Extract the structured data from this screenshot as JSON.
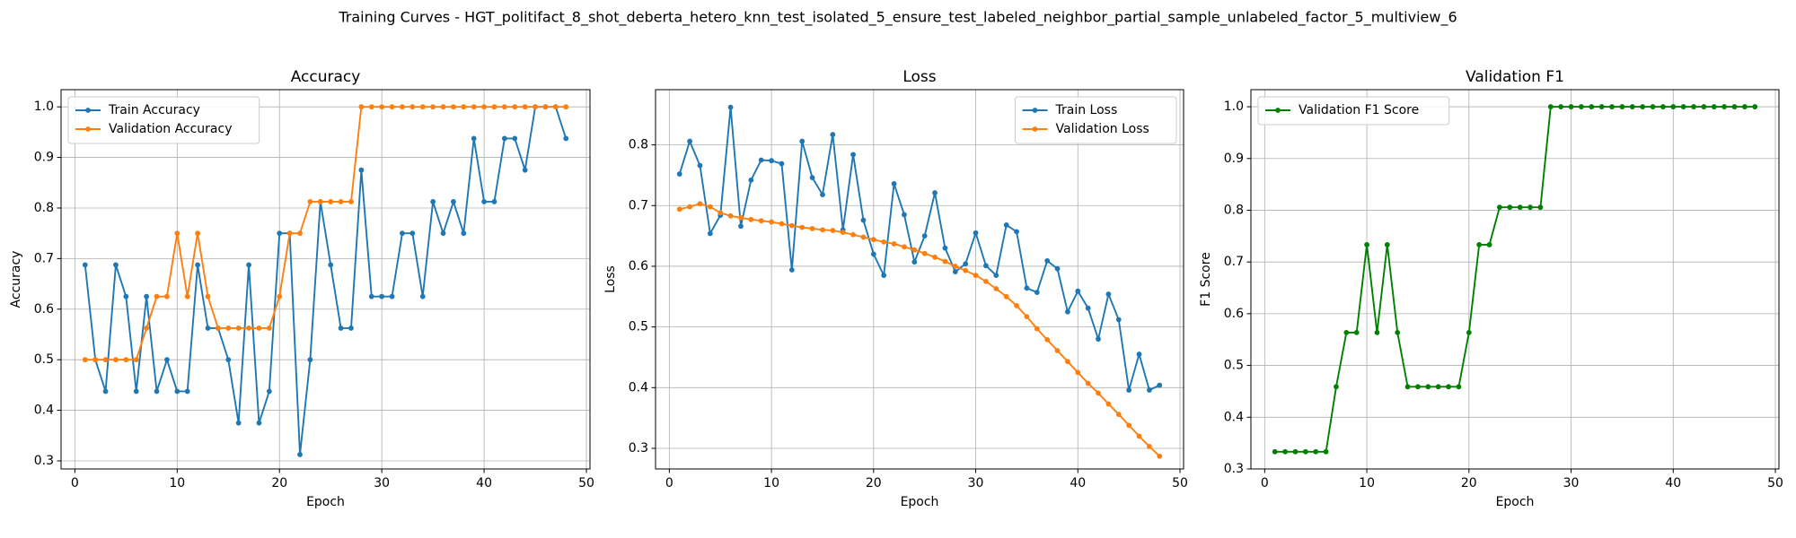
{
  "title": "Training Curves - HGT_politifact_8_shot_deberta_hetero_knn_test_isolated_5_ensure_test_labeled_neighbor_partial_sample_unlabeled_factor_5_multiview_6",
  "chart_data": [
    {
      "type": "line",
      "title": "Accuracy",
      "xlabel": "Epoch",
      "ylabel": "Accuracy",
      "x": [
        1,
        2,
        3,
        4,
        5,
        6,
        7,
        8,
        9,
        10,
        11,
        12,
        13,
        14,
        15,
        16,
        17,
        18,
        19,
        20,
        21,
        22,
        23,
        24,
        25,
        26,
        27,
        28,
        29,
        30,
        31,
        32,
        33,
        34,
        35,
        36,
        37,
        38,
        39,
        40,
        41,
        42,
        43,
        44,
        45,
        46,
        47,
        48
      ],
      "series": [
        {
          "name": "Train Accuracy",
          "color": "#1f77b4",
          "values": [
            0.6875,
            0.5,
            0.4375,
            0.6875,
            0.625,
            0.4375,
            0.625,
            0.4375,
            0.5,
            0.4375,
            0.4375,
            0.6875,
            0.5625,
            0.5625,
            0.5,
            0.375,
            0.6875,
            0.375,
            0.4375,
            0.75,
            0.75,
            0.3125,
            0.5,
            0.8125,
            0.6875,
            0.5625,
            0.5625,
            0.875,
            0.625,
            0.625,
            0.625,
            0.75,
            0.75,
            0.625,
            0.8125,
            0.75,
            0.8125,
            0.75,
            0.9375,
            0.8125,
            0.8125,
            0.9375,
            0.9375,
            0.875,
            1.0,
            1.0,
            1.0,
            0.9375
          ]
        },
        {
          "name": "Validation Accuracy",
          "color": "#ff7f0e",
          "values": [
            0.5,
            0.5,
            0.5,
            0.5,
            0.5,
            0.5,
            0.5625,
            0.625,
            0.625,
            0.75,
            0.625,
            0.75,
            0.625,
            0.5625,
            0.5625,
            0.5625,
            0.5625,
            0.5625,
            0.5625,
            0.625,
            0.75,
            0.75,
            0.8125,
            0.8125,
            0.8125,
            0.8125,
            0.8125,
            1.0,
            1.0,
            1.0,
            1.0,
            1.0,
            1.0,
            1.0,
            1.0,
            1.0,
            1.0,
            1.0,
            1.0,
            1.0,
            1.0,
            1.0,
            1.0,
            1.0,
            1.0,
            1.0,
            1.0,
            1.0
          ]
        }
      ],
      "xlim": [
        -1.35,
        50.35
      ],
      "ylim": [
        0.284,
        1.034
      ],
      "xticks": [
        0,
        10,
        20,
        30,
        40,
        50
      ],
      "yticks": [
        0.3,
        0.4,
        0.5,
        0.6,
        0.7,
        0.8,
        0.9,
        {
          "value": 1,
          "label": "1.0"
        }
      ],
      "grid": true,
      "legend": "upper left"
    },
    {
      "type": "line",
      "title": "Loss",
      "xlabel": "Epoch",
      "ylabel": "Loss",
      "x": [
        1,
        2,
        3,
        4,
        5,
        6,
        7,
        8,
        9,
        10,
        11,
        12,
        13,
        14,
        15,
        16,
        17,
        18,
        19,
        20,
        21,
        22,
        23,
        24,
        25,
        26,
        27,
        28,
        29,
        30,
        31,
        32,
        33,
        34,
        35,
        36,
        37,
        38,
        39,
        40,
        41,
        42,
        43,
        44,
        45,
        46,
        47,
        48
      ],
      "series": [
        {
          "name": "Train Loss",
          "color": "#1f77b4",
          "values": [
            0.752,
            0.806,
            0.766,
            0.654,
            0.684,
            0.862,
            0.666,
            0.742,
            0.775,
            0.774,
            0.769,
            0.594,
            0.806,
            0.746,
            0.718,
            0.817,
            0.66,
            0.784,
            0.676,
            0.62,
            0.585,
            0.736,
            0.685,
            0.607,
            0.65,
            0.721,
            0.63,
            0.591,
            0.604,
            0.655,
            0.601,
            0.585,
            0.668,
            0.657,
            0.564,
            0.557,
            0.609,
            0.596,
            0.525,
            0.559,
            0.531,
            0.48,
            0.554,
            0.512,
            0.396,
            0.455,
            0.396,
            0.404
          ]
        },
        {
          "name": "Validation Loss",
          "color": "#ff7f0e",
          "values": [
            0.694,
            0.698,
            0.703,
            0.698,
            0.688,
            0.683,
            0.68,
            0.677,
            0.675,
            0.673,
            0.67,
            0.667,
            0.664,
            0.662,
            0.66,
            0.659,
            0.656,
            0.652,
            0.648,
            0.644,
            0.64,
            0.637,
            0.632,
            0.627,
            0.621,
            0.615,
            0.608,
            0.6,
            0.593,
            0.585,
            0.575,
            0.563,
            0.55,
            0.535,
            0.517,
            0.497,
            0.479,
            0.461,
            0.443,
            0.425,
            0.407,
            0.391,
            0.373,
            0.356,
            0.338,
            0.32,
            0.303,
            0.287
          ]
        }
      ],
      "xlim": [
        -1.35,
        50.35
      ],
      "ylim": [
        0.266,
        0.891
      ],
      "xticks": [
        0,
        10,
        20,
        30,
        40,
        50
      ],
      "yticks": [
        0.3,
        0.4,
        0.5,
        0.6,
        0.7,
        0.8
      ],
      "grid": true,
      "legend": "upper right"
    },
    {
      "type": "line",
      "title": "Validation F1",
      "xlabel": "Epoch",
      "ylabel": "F1 Score",
      "x": [
        1,
        2,
        3,
        4,
        5,
        6,
        7,
        8,
        9,
        10,
        11,
        12,
        13,
        14,
        15,
        16,
        17,
        18,
        19,
        20,
        21,
        22,
        23,
        24,
        25,
        26,
        27,
        28,
        29,
        30,
        31,
        32,
        33,
        34,
        35,
        36,
        37,
        38,
        39,
        40,
        41,
        42,
        43,
        44,
        45,
        46,
        47,
        48
      ],
      "series": [
        {
          "name": "Validation F1 Score",
          "color": "#008000",
          "values": [
            0.3333,
            0.3333,
            0.3333,
            0.3333,
            0.3333,
            0.3333,
            0.4589,
            0.5636,
            0.5636,
            0.7333,
            0.5636,
            0.7333,
            0.5636,
            0.4589,
            0.4589,
            0.4589,
            0.4589,
            0.4589,
            0.4589,
            0.5636,
            0.7333,
            0.7333,
            0.8057,
            0.8057,
            0.8057,
            0.8057,
            0.8057,
            1.0,
            1.0,
            1.0,
            1.0,
            1.0,
            1.0,
            1.0,
            1.0,
            1.0,
            1.0,
            1.0,
            1.0,
            1.0,
            1.0,
            1.0,
            1.0,
            1.0,
            1.0,
            1.0,
            1.0,
            1.0
          ]
        }
      ],
      "xlim": [
        -1.35,
        50.35
      ],
      "ylim": [
        0.3,
        1.033
      ],
      "xticks": [
        0,
        10,
        20,
        30,
        40,
        50
      ],
      "yticks": [
        0.3,
        0.4,
        0.5,
        0.6,
        0.7,
        0.8,
        0.9,
        {
          "value": 1,
          "label": "1.0"
        }
      ],
      "grid": true,
      "legend": "upper left"
    }
  ]
}
